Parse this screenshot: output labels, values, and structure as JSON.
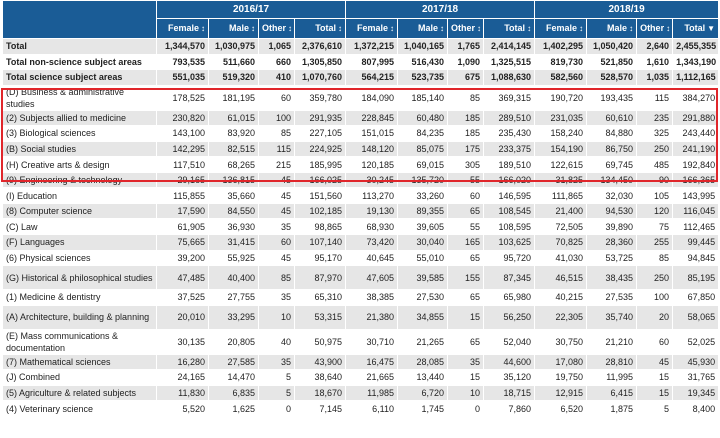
{
  "header": {
    "years": [
      "2016/17",
      "2017/18",
      "2018/19"
    ],
    "columns": [
      "Female",
      "Male",
      "Other",
      "Total"
    ],
    "sort_icons": [
      "↕",
      "↕",
      "↕",
      "↕",
      "↕",
      "↕",
      "↕",
      "↕",
      "↕",
      "↕",
      "↕",
      "▼"
    ]
  },
  "rows": [
    {
      "label": "Total",
      "v": [
        "1,344,570",
        "1,030,975",
        "1,065",
        "2,376,610",
        "1,372,215",
        "1,040,165",
        "1,765",
        "2,414,145",
        "1,402,295",
        "1,050,420",
        "2,640",
        "2,455,355"
      ],
      "bold": true
    },
    {
      "label": "Total non-science subject areas",
      "v": [
        "793,535",
        "511,660",
        "660",
        "1,305,850",
        "807,995",
        "516,430",
        "1,090",
        "1,325,515",
        "819,730",
        "521,850",
        "1,610",
        "1,343,190"
      ],
      "bold": true
    },
    {
      "label": "Total science subject areas",
      "v": [
        "551,035",
        "519,320",
        "410",
        "1,070,760",
        "564,215",
        "523,735",
        "675",
        "1,088,630",
        "582,560",
        "528,570",
        "1,035",
        "1,112,165"
      ],
      "bold": true
    },
    {
      "label": "(D) Business & administrative studies",
      "v": [
        "178,525",
        "181,195",
        "60",
        "359,780",
        "184,090",
        "185,140",
        "85",
        "369,315",
        "190,720",
        "193,435",
        "115",
        "384,270"
      ],
      "two": true
    },
    {
      "label": "(2) Subjects allied to medicine",
      "v": [
        "230,820",
        "61,015",
        "100",
        "291,935",
        "228,845",
        "60,480",
        "185",
        "289,510",
        "231,035",
        "60,610",
        "235",
        "291,880"
      ]
    },
    {
      "label": "(3) Biological sciences",
      "v": [
        "143,100",
        "83,920",
        "85",
        "227,105",
        "151,015",
        "84,235",
        "185",
        "235,430",
        "158,240",
        "84,880",
        "325",
        "243,440"
      ]
    },
    {
      "label": "(B) Social studies",
      "v": [
        "142,295",
        "82,515",
        "115",
        "224,925",
        "148,120",
        "85,075",
        "175",
        "233,375",
        "154,190",
        "86,750",
        "250",
        "241,190"
      ]
    },
    {
      "label": "(H) Creative arts & design",
      "v": [
        "117,510",
        "68,265",
        "215",
        "185,995",
        "120,185",
        "69,015",
        "305",
        "189,510",
        "122,615",
        "69,745",
        "485",
        "192,840"
      ]
    },
    {
      "label": "(9) Engineering & technology",
      "v": [
        "29,165",
        "136,815",
        "45",
        "166,025",
        "30,245",
        "135,720",
        "55",
        "166,020",
        "31,825",
        "134,450",
        "90",
        "166,365"
      ]
    },
    {
      "label": "(I) Education",
      "v": [
        "115,855",
        "35,660",
        "45",
        "151,560",
        "113,270",
        "33,260",
        "60",
        "146,595",
        "111,865",
        "32,030",
        "105",
        "143,995"
      ]
    },
    {
      "label": "(8) Computer science",
      "v": [
        "17,590",
        "84,550",
        "45",
        "102,185",
        "19,130",
        "89,355",
        "65",
        "108,545",
        "21,400",
        "94,530",
        "120",
        "116,045"
      ]
    },
    {
      "label": "(C) Law",
      "v": [
        "61,905",
        "36,930",
        "35",
        "98,865",
        "68,930",
        "39,605",
        "55",
        "108,595",
        "72,505",
        "39,890",
        "75",
        "112,465"
      ]
    },
    {
      "label": "(F) Languages",
      "v": [
        "75,665",
        "31,415",
        "60",
        "107,140",
        "73,420",
        "30,040",
        "165",
        "103,625",
        "70,825",
        "28,360",
        "255",
        "99,445"
      ]
    },
    {
      "label": "(6) Physical sciences",
      "v": [
        "39,200",
        "55,925",
        "45",
        "95,170",
        "40,645",
        "55,010",
        "65",
        "95,720",
        "41,030",
        "53,725",
        "85",
        "94,845"
      ]
    },
    {
      "label": "(G) Historical & philosophical studies",
      "v": [
        "47,485",
        "40,400",
        "85",
        "87,970",
        "47,605",
        "39,585",
        "155",
        "87,345",
        "46,515",
        "38,435",
        "250",
        "85,195"
      ],
      "two": true
    },
    {
      "label": "(1) Medicine & dentistry",
      "v": [
        "37,525",
        "27,755",
        "35",
        "65,310",
        "38,385",
        "27,530",
        "65",
        "65,980",
        "40,215",
        "27,535",
        "100",
        "67,850"
      ]
    },
    {
      "label": "(A) Architecture, building & planning",
      "v": [
        "20,010",
        "33,295",
        "10",
        "53,315",
        "21,380",
        "34,855",
        "15",
        "56,250",
        "22,305",
        "35,740",
        "20",
        "58,065"
      ],
      "two": true
    },
    {
      "label": "(E) Mass communications & documentation",
      "v": [
        "30,135",
        "20,805",
        "40",
        "50,975",
        "30,710",
        "21,265",
        "65",
        "52,040",
        "30,750",
        "21,210",
        "60",
        "52,025"
      ],
      "two": true
    },
    {
      "label": "(7) Mathematical sciences",
      "v": [
        "16,280",
        "27,585",
        "35",
        "43,900",
        "16,475",
        "28,085",
        "35",
        "44,600",
        "17,080",
        "28,810",
        "45",
        "45,930"
      ]
    },
    {
      "label": "(J) Combined",
      "v": [
        "24,165",
        "14,470",
        "5",
        "38,640",
        "21,665",
        "13,440",
        "15",
        "35,120",
        "19,750",
        "11,995",
        "15",
        "31,765"
      ]
    },
    {
      "label": "(5) Agriculture & related subjects",
      "v": [
        "11,830",
        "6,835",
        "5",
        "18,670",
        "11,985",
        "6,720",
        "10",
        "18,715",
        "12,915",
        "6,415",
        "15",
        "19,345"
      ]
    },
    {
      "label": "(4) Veterinary science",
      "v": [
        "5,520",
        "1,625",
        "0",
        "7,145",
        "6,110",
        "1,745",
        "0",
        "7,860",
        "6,520",
        "1,875",
        "5",
        "8,400"
      ]
    }
  ]
}
